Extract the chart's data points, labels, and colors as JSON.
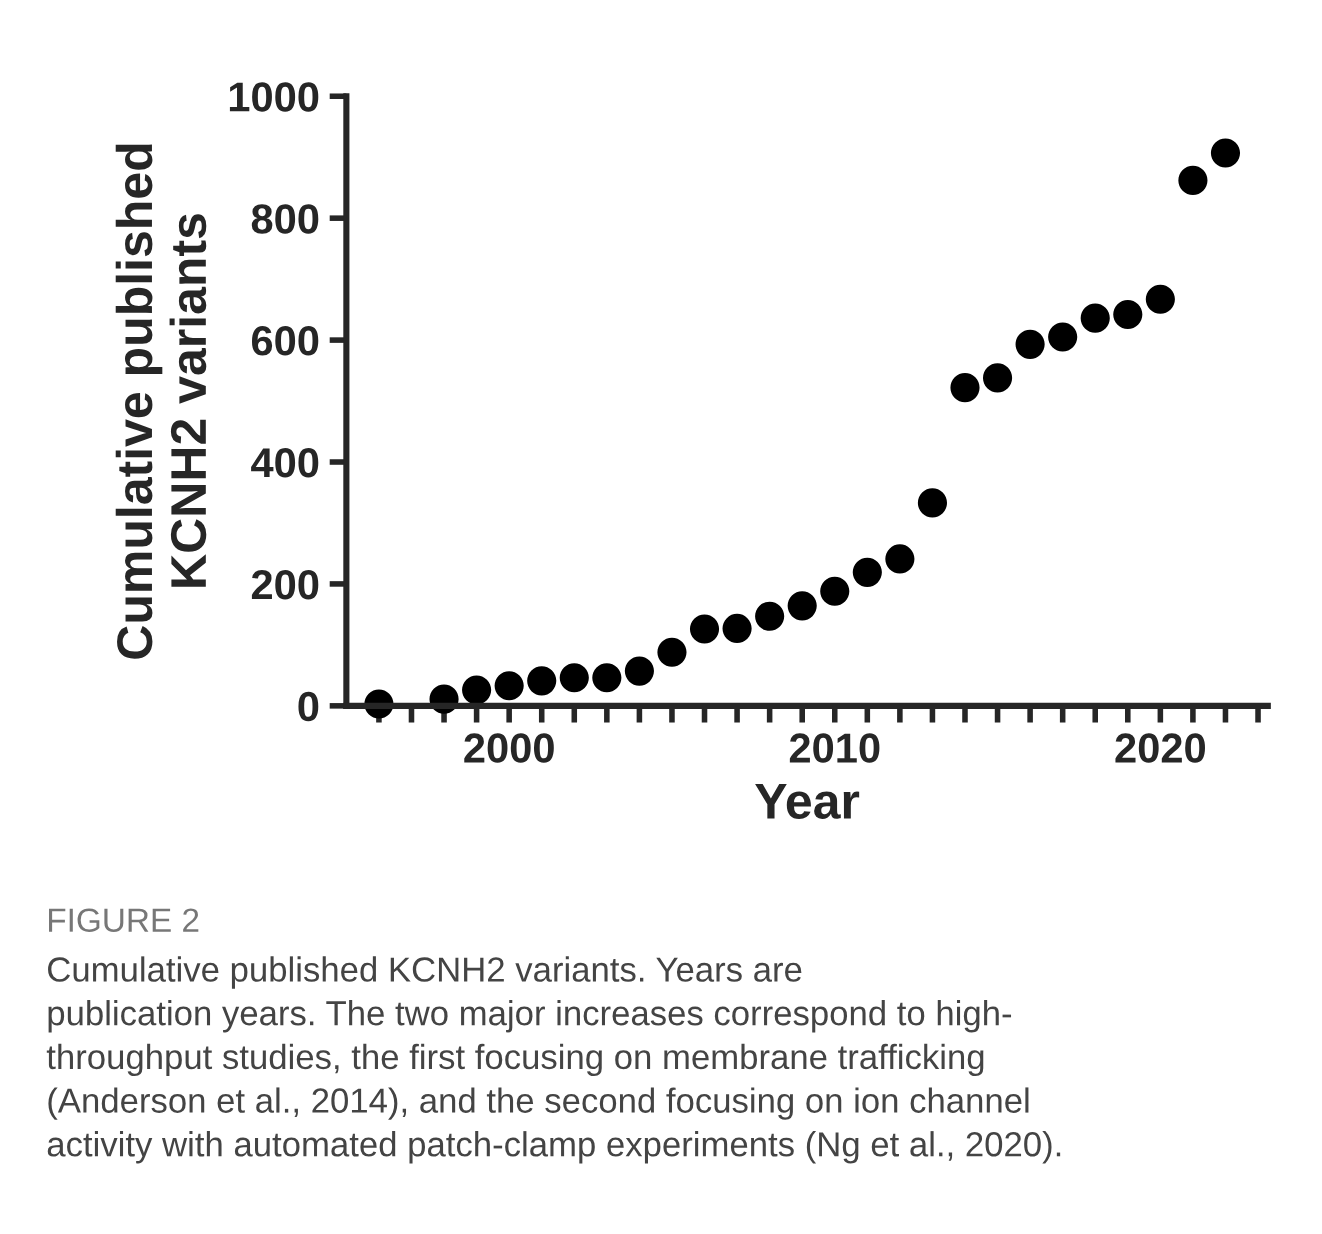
{
  "chart_data": {
    "type": "scatter",
    "xlabel": "Year",
    "ylabel": "Cumulative published\nKCNH2 variants",
    "x": [
      1996,
      1998,
      1999,
      2000,
      2001,
      2002,
      2003,
      2004,
      2005,
      2006,
      2007,
      2008,
      2009,
      2010,
      2011,
      2012,
      2013,
      2014,
      2015,
      2016,
      2017,
      2018,
      2019,
      2020,
      2021,
      2022
    ],
    "series": [
      {
        "color": "#000000",
        "values": [
          3,
          11,
          26,
          33,
          41,
          46,
          46,
          57,
          88,
          126,
          127,
          147,
          164,
          188,
          219,
          241,
          333,
          522,
          538,
          593,
          605,
          636,
          642,
          667,
          862,
          907
        ]
      }
    ],
    "marker": "circle",
    "xlim": [
      1995,
      2023.3
    ],
    "ylim": [
      0,
      1000
    ],
    "xticks": [
      {
        "value": 1996,
        "label": null
      },
      {
        "value": 1997,
        "label": null
      },
      {
        "value": 1998,
        "label": null
      },
      {
        "value": 1999,
        "label": null
      },
      2000,
      {
        "value": 2001,
        "label": null
      },
      {
        "value": 2002,
        "label": null
      },
      {
        "value": 2003,
        "label": null
      },
      {
        "value": 2004,
        "label": null
      },
      {
        "value": 2005,
        "label": null
      },
      {
        "value": 2006,
        "label": null
      },
      {
        "value": 2007,
        "label": null
      },
      {
        "value": 2008,
        "label": null
      },
      {
        "value": 2009,
        "label": null
      },
      2010,
      {
        "value": 2011,
        "label": null
      },
      {
        "value": 2012,
        "label": null
      },
      {
        "value": 2013,
        "label": null
      },
      {
        "value": 2014,
        "label": null
      },
      {
        "value": 2015,
        "label": null
      },
      {
        "value": 2016,
        "label": null
      },
      {
        "value": 2017,
        "label": null
      },
      {
        "value": 2018,
        "label": null
      },
      {
        "value": 2019,
        "label": null
      },
      2020,
      {
        "value": 2021,
        "label": null
      },
      {
        "value": 2022,
        "label": null
      },
      {
        "value": 2023,
        "label": null
      }
    ],
    "yticks": [
      0,
      200,
      400,
      600,
      800,
      1000
    ],
    "grid": false,
    "legend": false,
    "annotations": [
      "FIGURE 2",
      "Cumulative published KCNH2 variants. Years are\npublication years. The two major increases correspond to high-\nthroughput studies, the first focusing on membrane trafficking\n(Anderson et al., 2014), and the second focusing on ion channel\nactivity with automated patch-clamp experiments (Ng et al., 2020)."
    ]
  }
}
